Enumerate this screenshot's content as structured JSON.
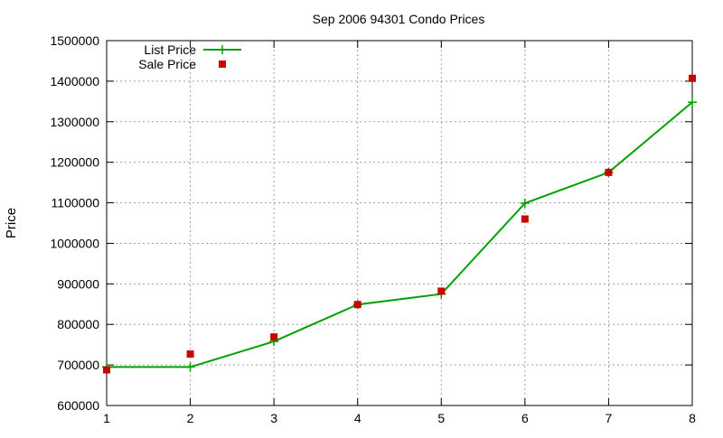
{
  "chart_data": {
    "type": "line",
    "title": "Sep 2006 94301 Condo Prices",
    "xlabel": "",
    "ylabel": "Price",
    "x": [
      1,
      2,
      3,
      4,
      5,
      6,
      7,
      8
    ],
    "xlim": [
      1,
      8
    ],
    "ylim": [
      600000,
      1500000
    ],
    "xticks": [
      1,
      2,
      3,
      4,
      5,
      6,
      7,
      8
    ],
    "yticks": [
      600000,
      700000,
      800000,
      900000,
      1000000,
      1100000,
      1200000,
      1300000,
      1400000,
      1500000
    ],
    "grid": true,
    "legend_position": "top-left",
    "series": [
      {
        "name": "List Price",
        "style": "line-with-plus-markers",
        "color": "#00a000",
        "values": [
          695000,
          695000,
          758000,
          849000,
          875000,
          1099000,
          1175000,
          1348000
        ]
      },
      {
        "name": "Sale Price",
        "style": "square-markers",
        "color": "#cc0000",
        "values": [
          688000,
          727000,
          769000,
          849000,
          882000,
          1060000,
          1175000,
          1407000
        ]
      }
    ]
  }
}
